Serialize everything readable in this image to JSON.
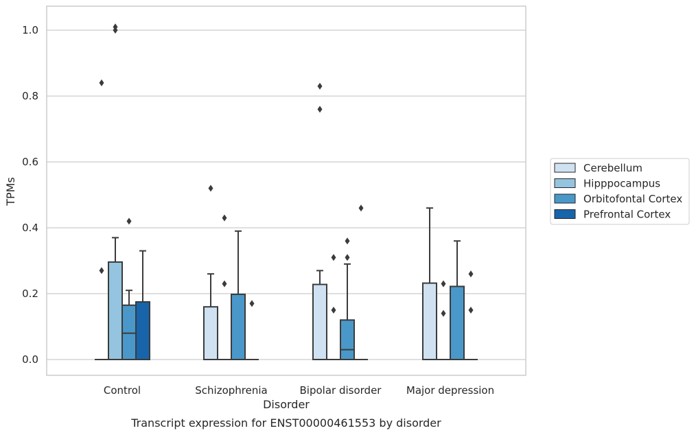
{
  "chart_data": {
    "type": "boxplot",
    "xlabel": "Disorder",
    "ylabel": "TPMs",
    "caption": "Transcript expression for ENST00000461553 by disorder",
    "ylim": [
      -0.05,
      1.07
    ],
    "yticks": [
      0.0,
      0.2,
      0.4,
      0.6,
      0.8,
      1.0
    ],
    "ytick_labels": [
      "0.0",
      "0.2",
      "0.4",
      "0.6",
      "0.8",
      "1.0"
    ],
    "grid": "horizontal",
    "legend_position": "right",
    "categories": [
      "Control",
      "Schizophrenia",
      "Bipolar disorder",
      "Major depression"
    ],
    "series": [
      {
        "name": "Cerebellum",
        "color": "#d0e1f2",
        "boxes": [
          {
            "q1": 0,
            "median": 0,
            "q3": 0,
            "whisker_low": 0,
            "whisker_high": 0,
            "outliers": [
              0.27,
              0.84
            ]
          },
          {
            "q1": 0,
            "median": 0,
            "q3": 0.16,
            "whisker_low": 0,
            "whisker_high": 0.26,
            "outliers": [
              0.52
            ]
          },
          {
            "q1": 0,
            "median": 0,
            "q3": 0.228,
            "whisker_low": 0,
            "whisker_high": 0.27,
            "outliers": [
              0.76,
              0.83
            ]
          },
          {
            "q1": 0,
            "median": 0,
            "q3": 0.232,
            "whisker_low": 0,
            "whisker_high": 0.46,
            "outliers": []
          }
        ]
      },
      {
        "name": "Hipppocampus",
        "color": "#94c4df",
        "boxes": [
          {
            "q1": 0,
            "median": 0,
            "q3": 0.296,
            "whisker_low": 0,
            "whisker_high": 0.37,
            "outliers": [
              1.0,
              1.01
            ]
          },
          {
            "q1": 0,
            "median": 0,
            "q3": 0,
            "whisker_low": 0,
            "whisker_high": 0,
            "outliers": [
              0.23,
              0.43
            ]
          },
          {
            "q1": 0,
            "median": 0,
            "q3": 0,
            "whisker_low": 0,
            "whisker_high": 0,
            "outliers": [
              0.15,
              0.31
            ]
          },
          {
            "q1": 0,
            "median": 0,
            "q3": 0,
            "whisker_low": 0,
            "whisker_high": 0,
            "outliers": [
              0.14,
              0.23
            ]
          }
        ]
      },
      {
        "name": "Orbitofontal Cortex",
        "color": "#4a98c9",
        "boxes": [
          {
            "q1": 0,
            "median": 0.08,
            "q3": 0.165,
            "whisker_low": 0,
            "whisker_high": 0.21,
            "outliers": [
              0.42
            ]
          },
          {
            "q1": 0,
            "median": 0,
            "q3": 0.198,
            "whisker_low": 0,
            "whisker_high": 0.39,
            "outliers": []
          },
          {
            "q1": 0,
            "median": 0.03,
            "q3": 0.12,
            "whisker_low": 0,
            "whisker_high": 0.29,
            "outliers": [
              0.31,
              0.36
            ]
          },
          {
            "q1": 0,
            "median": 0,
            "q3": 0.222,
            "whisker_low": 0,
            "whisker_high": 0.36,
            "outliers": []
          }
        ]
      },
      {
        "name": "Prefrontal Cortex",
        "color": "#1764ab",
        "boxes": [
          {
            "q1": 0,
            "median": 0,
            "q3": 0.175,
            "whisker_low": 0,
            "whisker_high": 0.33,
            "outliers": []
          },
          {
            "q1": 0,
            "median": 0,
            "q3": 0,
            "whisker_low": 0,
            "whisker_high": 0,
            "outliers": [
              0.17
            ]
          },
          {
            "q1": 0,
            "median": 0,
            "q3": 0,
            "whisker_low": 0,
            "whisker_high": 0,
            "outliers": [
              0.46
            ]
          },
          {
            "q1": 0,
            "median": 0,
            "q3": 0,
            "whisker_low": 0,
            "whisker_high": 0,
            "outliers": [
              0.15,
              0.26
            ]
          }
        ]
      }
    ]
  }
}
